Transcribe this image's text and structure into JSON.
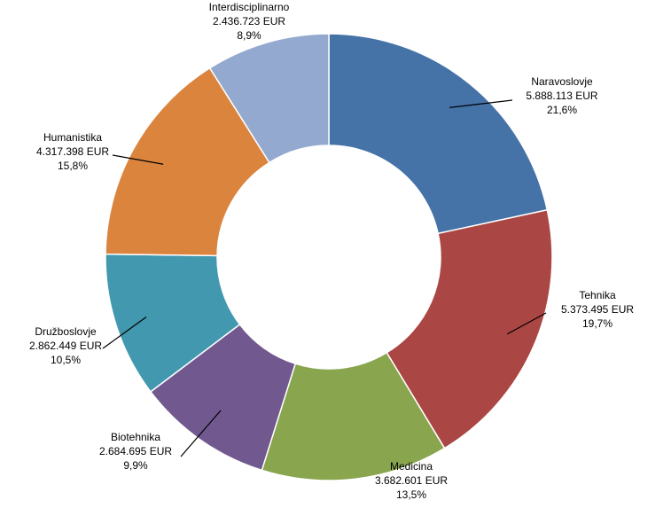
{
  "chart_data": {
    "type": "pie",
    "variant": "donut",
    "title": "",
    "series": [
      {
        "name": "Naravoslovje",
        "value": 5888113,
        "value_label": "5.888.113 EUR",
        "percent": 21.6,
        "percent_label": "21,6%",
        "color": "#4572A7"
      },
      {
        "name": "Tehnika",
        "value": 5373495,
        "value_label": "5.373.495 EUR",
        "percent": 19.7,
        "percent_label": "19,7%",
        "color": "#AA4643"
      },
      {
        "name": "Medicina",
        "value": 3682601,
        "value_label": "3.682.601 EUR",
        "percent": 13.5,
        "percent_label": "13,5%",
        "color": "#89A54E"
      },
      {
        "name": "Biotehnika",
        "value": 2684695,
        "value_label": "2.684.695 EUR",
        "percent": 9.9,
        "percent_label": "9,9%",
        "color": "#71588F"
      },
      {
        "name": "Družboslovje",
        "value": 2862449,
        "value_label": "2.862.449 EUR",
        "percent": 10.5,
        "percent_label": "10,5%",
        "color": "#4198AF"
      },
      {
        "name": "Humanistika",
        "value": 4317398,
        "value_label": "4.317.398 EUR",
        "percent": 15.8,
        "percent_label": "15,8%",
        "color": "#DB843D"
      },
      {
        "name": "Interdisciplinarno",
        "value": 2436723,
        "value_label": "2.436.723 EUR",
        "percent": 8.9,
        "percent_label": "8,9%",
        "color": "#93A9CF"
      }
    ]
  }
}
